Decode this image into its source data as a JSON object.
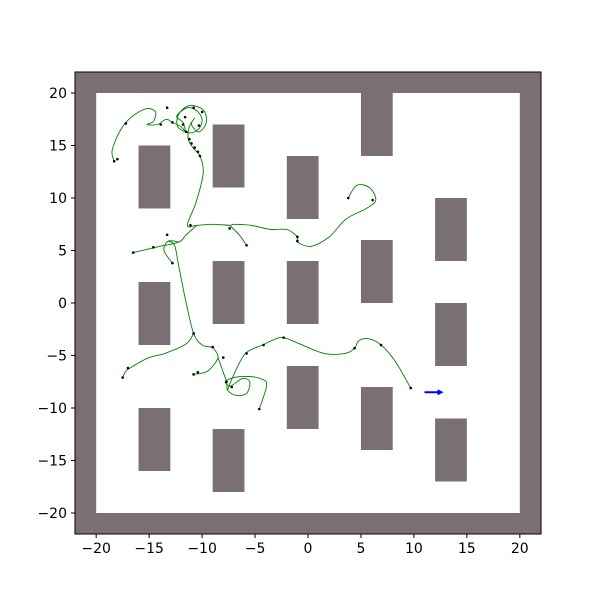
{
  "chart_data": {
    "type": "scatter",
    "title": "",
    "xlabel": "",
    "ylabel": "",
    "xlim": [
      -22,
      22
    ],
    "ylim": [
      -22,
      22
    ],
    "x_ticks": [
      -20,
      -15,
      -10,
      -5,
      0,
      5,
      10,
      15,
      20
    ],
    "y_ticks": [
      -20,
      -15,
      -10,
      -5,
      0,
      5,
      10,
      15,
      20
    ],
    "x_tick_labels": [
      "−20",
      "−15",
      "−10",
      "−5",
      "0",
      "5",
      "10",
      "15",
      "20"
    ],
    "y_tick_labels": [
      "−20",
      "−15",
      "−10",
      "−5",
      "0",
      "5",
      "10",
      "15",
      "20"
    ],
    "grid": false,
    "colors": {
      "obstacle": "#7a6f75",
      "path": "#008000",
      "waypoint": "#000000",
      "robot": "#0000ff"
    },
    "obstacles": [
      {
        "x": [
          -22,
          22
        ],
        "y": [
          20,
          22
        ]
      },
      {
        "x": [
          -22,
          22
        ],
        "y": [
          -22,
          -20
        ]
      },
      {
        "x": [
          -22,
          -20
        ],
        "y": [
          -20,
          20
        ]
      },
      {
        "x": [
          20,
          22
        ],
        "y": [
          -20,
          20
        ]
      },
      {
        "x": [
          5,
          8
        ],
        "y": [
          14,
          20
        ]
      },
      {
        "x": [
          -16,
          -13
        ],
        "y": [
          9,
          15
        ]
      },
      {
        "x": [
          -9,
          -6
        ],
        "y": [
          11,
          17
        ]
      },
      {
        "x": [
          -2,
          1
        ],
        "y": [
          8,
          14
        ]
      },
      {
        "x": [
          12,
          15
        ],
        "y": [
          4,
          10
        ]
      },
      {
        "x": [
          5,
          8
        ],
        "y": [
          0,
          6
        ]
      },
      {
        "x": [
          -16,
          -13
        ],
        "y": [
          -4,
          2
        ]
      },
      {
        "x": [
          -9,
          -6
        ],
        "y": [
          -2,
          4
        ]
      },
      {
        "x": [
          -2,
          1
        ],
        "y": [
          -2,
          4
        ]
      },
      {
        "x": [
          12,
          15
        ],
        "y": [
          -6,
          0
        ]
      },
      {
        "x": [
          -2,
          1
        ],
        "y": [
          -12,
          -6
        ]
      },
      {
        "x": [
          5,
          8
        ],
        "y": [
          -14,
          -8
        ]
      },
      {
        "x": [
          12,
          15
        ],
        "y": [
          -17,
          -11
        ]
      },
      {
        "x": [
          -16,
          -13
        ],
        "y": [
          -16,
          -10
        ]
      },
      {
        "x": [
          -9,
          -6
        ],
        "y": [
          -18,
          -12
        ]
      }
    ],
    "path": [
      [
        -18.3,
        13.5
      ],
      [
        -18.5,
        14.5
      ],
      [
        -17.8,
        16.3
      ],
      [
        -16.8,
        17.6
      ],
      [
        -15.3,
        18.5
      ],
      [
        -14.4,
        18.2
      ],
      [
        -14.6,
        17.3
      ],
      [
        -15.2,
        17.0
      ],
      [
        -14.2,
        17.0
      ],
      [
        -13.4,
        17.5
      ],
      [
        -12.8,
        17.2
      ],
      [
        -12.0,
        16.8
      ],
      [
        -11.6,
        16.4
      ],
      [
        -11.8,
        17.2
      ],
      [
        -12.4,
        17.8
      ],
      [
        -11.4,
        18.6
      ],
      [
        -10.5,
        18.3
      ],
      [
        -10.0,
        17.5
      ],
      [
        -10.3,
        16.6
      ],
      [
        -11.2,
        16.2
      ],
      [
        -12.3,
        16.8
      ],
      [
        -12.2,
        18.0
      ],
      [
        -11.2,
        18.8
      ],
      [
        -9.9,
        18.4
      ],
      [
        -9.6,
        17.2
      ],
      [
        -10.3,
        16.3
      ],
      [
        -11.0,
        17.0
      ],
      [
        -10.7,
        17.6
      ],
      [
        -11.2,
        16.8
      ],
      [
        -11.3,
        15.6
      ],
      [
        -10.8,
        14.7
      ],
      [
        -10.2,
        14.0
      ],
      [
        -9.9,
        12.3
      ],
      [
        -10.6,
        9.5
      ],
      [
        -11.4,
        7.4
      ],
      [
        -10.5,
        7.4
      ],
      [
        -9.0,
        7.5
      ],
      [
        -7.4,
        7.4
      ],
      [
        -7.0,
        7.5
      ],
      [
        -5.4,
        7.4
      ],
      [
        -3.5,
        7.0
      ],
      [
        -2.0,
        7.0
      ],
      [
        -1.0,
        6.3
      ],
      [
        -1.0,
        5.8
      ],
      [
        0.3,
        5.4
      ],
      [
        2.0,
        6.3
      ],
      [
        3.6,
        8.0
      ],
      [
        5.5,
        9.0
      ],
      [
        6.4,
        9.8
      ],
      [
        5.8,
        11.0
      ],
      [
        4.6,
        11.2
      ],
      [
        3.8,
        10.0
      ]
    ],
    "branches": [
      [
        [
          -7.4,
          7.4
        ],
        [
          -6.5,
          6.5
        ],
        [
          -5.8,
          5.5
        ]
      ],
      [
        [
          -10.5,
          7.4
        ],
        [
          -11.5,
          6.5
        ],
        [
          -12.2,
          5.8
        ],
        [
          -14.0,
          5.4
        ],
        [
          -16.5,
          4.8
        ]
      ],
      [
        [
          -12.2,
          5.8
        ],
        [
          -13.2,
          5.9
        ],
        [
          -13.6,
          5.0
        ],
        [
          -12.8,
          3.8
        ]
      ],
      [
        [
          -13.2,
          5.9
        ],
        [
          -12.6,
          5.5
        ],
        [
          -12.2,
          3.5
        ],
        [
          -11.5,
          0.0
        ],
        [
          -10.8,
          -2.9
        ],
        [
          -10.0,
          -4.0
        ],
        [
          -9.0,
          -4.2
        ]
      ],
      [
        [
          -10.8,
          -2.9
        ],
        [
          -11.5,
          -3.9
        ],
        [
          -13.5,
          -4.8
        ],
        [
          -15.0,
          -5.2
        ],
        [
          -16.5,
          -6.0
        ],
        [
          -17.2,
          -6.5
        ],
        [
          -17.5,
          -7.1
        ]
      ],
      [
        [
          -9.0,
          -4.2
        ],
        [
          -8.5,
          -5.2
        ],
        [
          -9.5,
          -6.5
        ],
        [
          -10.8,
          -6.8
        ]
      ],
      [
        [
          -8.5,
          -5.2
        ],
        [
          -7.7,
          -7.5
        ],
        [
          -7.6,
          -8.3
        ],
        [
          -6.8,
          -8.8
        ],
        [
          -5.8,
          -8.6
        ],
        [
          -5.5,
          -7.5
        ],
        [
          -6.2,
          -7.2
        ],
        [
          -7.3,
          -7.9
        ],
        [
          -7.8,
          -7.5
        ],
        [
          -7.0,
          -7.1
        ],
        [
          -5.6,
          -7.0
        ],
        [
          -4.5,
          -7.2
        ],
        [
          -3.9,
          -7.8
        ],
        [
          -4.6,
          -10.1
        ]
      ],
      [
        [
          -7.6,
          -8.3
        ],
        [
          -7.0,
          -6.8
        ],
        [
          -5.9,
          -4.8
        ],
        [
          -4.3,
          -4.0
        ],
        [
          -3.0,
          -3.4
        ],
        [
          -2.3,
          -3.3
        ],
        [
          -1.0,
          -3.8
        ],
        [
          1.5,
          -4.8
        ],
        [
          3.5,
          -4.8
        ],
        [
          4.4,
          -4.3
        ],
        [
          4.8,
          -3.6
        ],
        [
          5.7,
          -3.4
        ],
        [
          6.9,
          -4.0
        ],
        [
          8.2,
          -5.5
        ],
        [
          9.7,
          -8.1
        ]
      ]
    ],
    "waypoints": [
      [
        -18.3,
        13.5
      ],
      [
        -18.0,
        13.7
      ],
      [
        -17.2,
        17.1
      ],
      [
        -13.3,
        18.6
      ],
      [
        -12.8,
        17.2
      ],
      [
        -13.9,
        17.0
      ],
      [
        -10.8,
        18.6
      ],
      [
        -10.0,
        18.2
      ],
      [
        -11.6,
        17.7
      ],
      [
        -11.8,
        17.0
      ],
      [
        -10.3,
        16.9
      ],
      [
        -11.5,
        16.3
      ],
      [
        -11.2,
        15.6
      ],
      [
        -11.0,
        15.2
      ],
      [
        -10.7,
        14.8
      ],
      [
        -10.4,
        14.4
      ],
      [
        -10.2,
        14.0
      ],
      [
        -11.1,
        7.4
      ],
      [
        -7.4,
        7.1
      ],
      [
        -5.8,
        5.5
      ],
      [
        -1.0,
        6.3
      ],
      [
        -1.0,
        5.9
      ],
      [
        3.8,
        10.0
      ],
      [
        6.1,
        9.8
      ],
      [
        -16.5,
        4.8
      ],
      [
        -14.6,
        5.3
      ],
      [
        -13.3,
        6.5
      ],
      [
        -12.8,
        3.8
      ],
      [
        -10.8,
        -2.9
      ],
      [
        -9.0,
        -4.2
      ],
      [
        -8.0,
        -5.2
      ],
      [
        -10.8,
        -6.8
      ],
      [
        -10.4,
        -6.6
      ],
      [
        -17.5,
        -7.1
      ],
      [
        -17.0,
        -6.2
      ],
      [
        -7.7,
        -7.5
      ],
      [
        -7.2,
        -8.0
      ],
      [
        -5.8,
        -4.8
      ],
      [
        -4.2,
        -4.0
      ],
      [
        -2.3,
        -3.3
      ],
      [
        4.4,
        -4.3
      ],
      [
        6.9,
        -4.0
      ],
      [
        9.7,
        -8.1
      ],
      [
        -4.6,
        -10.1
      ]
    ],
    "robot": {
      "x": [
        11.0,
        12.8
      ],
      "y": [
        -8.5,
        -8.5
      ]
    }
  }
}
